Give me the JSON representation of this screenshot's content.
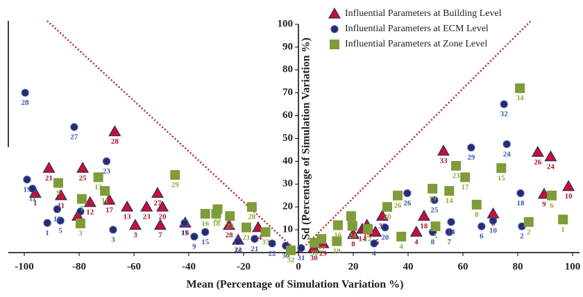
{
  "chart_data": {
    "type": "scatter",
    "x_label": "Mean (Percentage of Simulation Variation %)",
    "y_label": "Sd (Percentage of Simulation Variation %)",
    "xlim": [
      -100,
      100
    ],
    "ylim": [
      0,
      100
    ],
    "xticks": [
      -100,
      -80,
      -60,
      -40,
      -20,
      0,
      20,
      40,
      60,
      80,
      100
    ],
    "yticks": [
      0,
      10,
      20,
      30,
      40,
      50,
      60,
      70,
      80,
      90,
      100
    ],
    "legend": "top-right",
    "series": [
      {
        "name": "Influential Parameters at Building Level",
        "marker": "triangle",
        "color": "#c8102e",
        "label_color": "#a01a2a",
        "x": [
          -91,
          -96,
          -86.6,
          -80.5,
          -78.7,
          -76,
          -69,
          -67,
          -62.5,
          -59.5,
          -55.4,
          -51.4,
          -49.6,
          -50.4,
          -41.3,
          -25.3,
          -22,
          -14.7,
          9,
          5.6,
          20,
          23.3,
          25,
          30.6,
          28.1,
          43,
          45.8,
          52.9,
          71,
          87.3,
          92,
          89.6,
          98.5
        ],
        "values": [
          37,
          26,
          25,
          16,
          37,
          22,
          23,
          53,
          20,
          12,
          20,
          26,
          20,
          12,
          13,
          12,
          5.5,
          11,
          4,
          2,
          8,
          10.3,
          12,
          16,
          9,
          9,
          16,
          44.5,
          17,
          44,
          42,
          25.6,
          29
        ],
        "labels": [
          "21",
          "1",
          "11",
          "2",
          "25",
          "12",
          "17",
          "28",
          "13",
          "3",
          "23",
          "27",
          "20",
          "7",
          "16",
          "28",
          "22",
          "14",
          "29",
          "30",
          "8",
          "14",
          "19",
          "32",
          "15",
          "4",
          "18",
          "33",
          "6",
          "26",
          "24",
          "9",
          "10"
        ]
      },
      {
        "name": "Influential Parameters at ECM Level",
        "marker": "circle",
        "color": "#2a2a6e",
        "label_color": "#3a57a8",
        "x": [
          -99.7,
          -99,
          -97,
          -91.6,
          -81.8,
          -86.8,
          -88,
          -79.5,
          -70,
          -67.6,
          -41.5,
          -38,
          -34,
          -22,
          -16,
          -9.6,
          -4.6,
          1,
          27.6,
          31.6,
          49,
          49.6,
          39.7,
          55,
          55.7,
          63,
          66.8,
          75,
          76,
          71,
          81,
          81.5
        ],
        "values": [
          70,
          32,
          28,
          13,
          55,
          14,
          19,
          18,
          40,
          10,
          13,
          7,
          9,
          5,
          6,
          4,
          3,
          2,
          4,
          11,
          9,
          23,
          26,
          9,
          13.4,
          46,
          11.5,
          65,
          47.5,
          14,
          26,
          11.5
        ],
        "labels": [
          "28",
          "19",
          "11",
          "1",
          "27",
          "5",
          "12",
          "13",
          "23",
          "3",
          "17",
          "9",
          "15",
          "16",
          "21",
          "22",
          "30",
          "31",
          "4",
          "20",
          "8",
          "25",
          "26",
          "7",
          "14",
          "29",
          "6",
          "32",
          "24",
          "10",
          "18",
          "2"
        ]
      },
      {
        "name": "Influential Parameters at Zone Level",
        "marker": "square",
        "color": "#7e9c3a",
        "label_color": "#8aaa3a",
        "x": [
          -87.6,
          -79,
          -79.5,
          -73,
          -70.6,
          -45,
          -34,
          -30,
          -29.5,
          -25,
          -17,
          -19,
          -12,
          -2.8,
          5.8,
          8.4,
          14,
          14.4,
          19.2,
          25.3,
          19.7,
          32.4,
          36.2,
          37.5,
          48.9,
          50,
          55,
          57.5,
          60.8,
          65,
          80.8,
          74,
          92.4,
          84,
          96.5
        ],
        "values": [
          30.5,
          23.5,
          12.8,
          33,
          27,
          34,
          17,
          17,
          19,
          16,
          20,
          11,
          9,
          1,
          4.3,
          6,
          5,
          12,
          16,
          10.4,
          11.7,
          20,
          25,
          7,
          28,
          11.5,
          27,
          38,
          33,
          21,
          72,
          37,
          25,
          13.4,
          14.5
        ],
        "labels": [
          "9",
          "7",
          "3",
          "13",
          "11",
          "29",
          "16",
          "18",
          "22",
          "25",
          "28",
          "21",
          "33",
          "32",
          "30",
          "27",
          "10",
          "16",
          "31",
          "12",
          "24",
          "20",
          "26",
          "4",
          "19",
          "5",
          "14",
          "23",
          "17",
          "8",
          "34",
          "15",
          "6",
          "2",
          "1"
        ]
      }
    ]
  }
}
